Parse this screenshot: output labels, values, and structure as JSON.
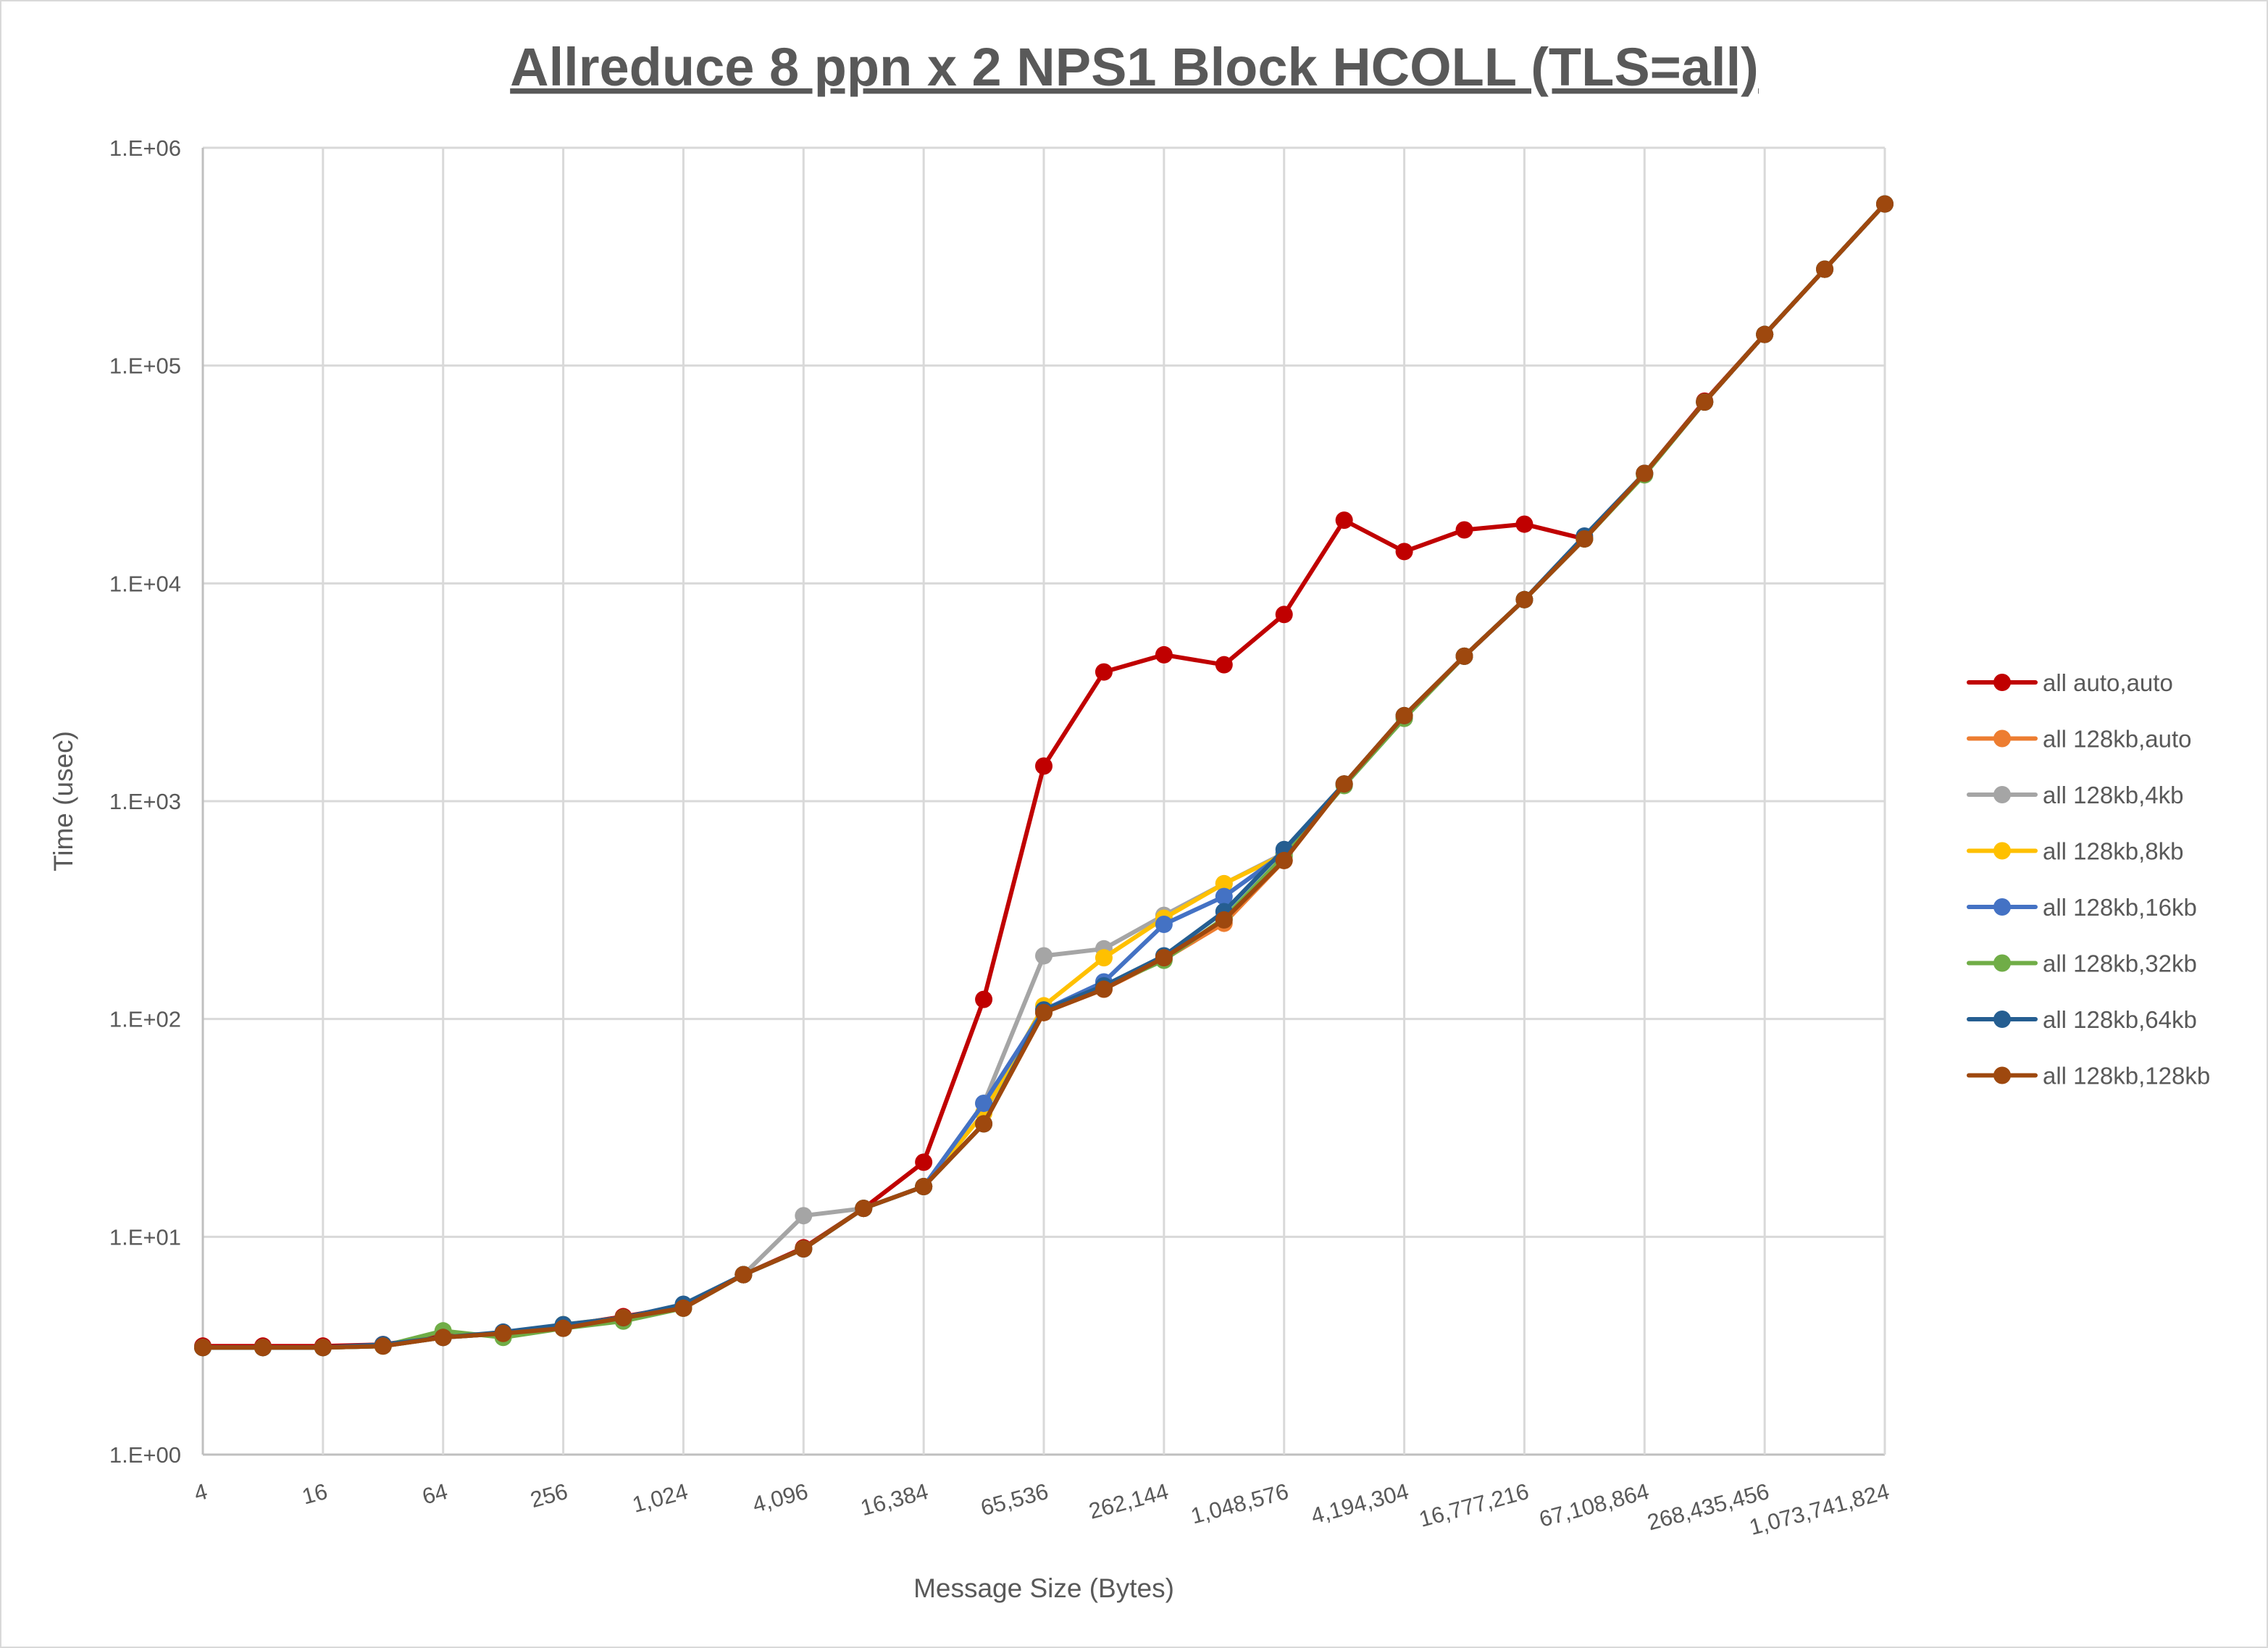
{
  "chart_data": {
    "type": "line",
    "title": "Allreduce 8 ppn x 2 NPS1 Block HCOLL (TLS=all)",
    "xlabel": "Message Size (Bytes)",
    "ylabel": "Time (usec)",
    "x_scale": "log2",
    "y_scale": "log10",
    "ylim": [
      1,
      1000000
    ],
    "grid": true,
    "legend_position": "right",
    "y_tick_labels": [
      "1.E+00",
      "1.E+01",
      "1.E+02",
      "1.E+03",
      "1.E+04",
      "1.E+05",
      "1.E+06"
    ],
    "x_tick_labels": [
      "4",
      "16",
      "64",
      "256",
      "1,024",
      "4,096",
      "16,384",
      "65,536",
      "262,144",
      "1,048,576",
      "4,194,304",
      "16,777,216",
      "67,108,864",
      "268,435,456",
      "1,073,741,824"
    ],
    "x": [
      4,
      8,
      16,
      32,
      64,
      128,
      256,
      512,
      1024,
      2048,
      4096,
      8192,
      16384,
      32768,
      65536,
      131072,
      262144,
      524288,
      1048576,
      2097152,
      4194304,
      8388608,
      16777216,
      33554432,
      67108864,
      134217728,
      268435456,
      536870912,
      1073741824
    ],
    "series": [
      {
        "name": "all auto,auto",
        "color": "#C00000",
        "values": [
          3.15,
          3.15,
          3.15,
          3.2,
          3.5,
          3.6,
          3.9,
          4.3,
          4.8,
          6.7,
          8.9,
          13.5,
          22,
          123,
          1450,
          3920,
          4700,
          4230,
          7200,
          19500,
          14000,
          17600,
          18700,
          16000,
          32000,
          68700,
          139000,
          277000,
          552000
        ]
      },
      {
        "name": "all 128kb,auto",
        "color": "#ED7D31",
        "values": [
          3.1,
          3.1,
          3.1,
          3.15,
          3.45,
          3.6,
          3.8,
          4.25,
          4.7,
          6.7,
          8.8,
          13.5,
          17,
          33,
          107,
          137,
          188,
          275,
          534,
          1200,
          2470,
          4630,
          8420,
          16000,
          32000,
          68000,
          139000,
          277000,
          552000
        ]
      },
      {
        "name": "all 128kb,4kb",
        "color": "#A5A5A5",
        "values": [
          3.1,
          3.1,
          3.1,
          3.15,
          3.45,
          3.6,
          3.8,
          4.25,
          4.7,
          6.7,
          12.5,
          13.5,
          17,
          41,
          195,
          210,
          299,
          418,
          577,
          1180,
          2400,
          4630,
          8420,
          16000,
          32000,
          68000,
          139000,
          277000,
          552000
        ]
      },
      {
        "name": "all 128kb,8kb",
        "color": "#FFC000",
        "values": [
          3.1,
          3.1,
          3.1,
          3.15,
          3.45,
          3.6,
          3.95,
          4.25,
          4.7,
          6.7,
          8.8,
          13.5,
          17,
          37,
          115,
          191,
          290,
          418,
          570,
          1200,
          2470,
          4630,
          8420,
          16000,
          32000,
          68000,
          139000,
          277000,
          552000
        ]
      },
      {
        "name": "all 128kb,16kb",
        "color": "#4472C4",
        "values": [
          3.1,
          3.1,
          3.1,
          3.15,
          3.45,
          3.6,
          3.8,
          4.25,
          4.7,
          6.7,
          8.8,
          13.5,
          17,
          41,
          110,
          148,
          272,
          365,
          577,
          1200,
          2470,
          4630,
          8420,
          16000,
          32000,
          68000,
          139000,
          277000,
          552000
        ]
      },
      {
        "name": "all 128kb,32kb",
        "color": "#70AD47",
        "values": [
          3.1,
          3.1,
          3.1,
          3.15,
          3.7,
          3.45,
          3.8,
          4.1,
          4.7,
          6.7,
          8.8,
          13.5,
          17,
          33,
          108,
          140,
          186,
          290,
          560,
          1180,
          2400,
          4630,
          8420,
          16000,
          31500,
          68000,
          139000,
          277000,
          552000
        ]
      },
      {
        "name": "all 128kb,64kb",
        "color": "#255E91",
        "values": [
          3.1,
          3.1,
          3.1,
          3.2,
          3.45,
          3.65,
          3.95,
          4.25,
          4.9,
          6.7,
          8.8,
          13.5,
          17,
          33,
          110,
          142,
          195,
          311,
          600,
          1200,
          2470,
          4630,
          8420,
          16500,
          32000,
          68000,
          139000,
          277000,
          552000
        ]
      },
      {
        "name": "all 128kb,128kb",
        "color": "#9E480E",
        "values": [
          3.1,
          3.1,
          3.1,
          3.15,
          3.45,
          3.6,
          3.8,
          4.25,
          4.7,
          6.7,
          8.8,
          13.5,
          17,
          33,
          107,
          137,
          191,
          285,
          534,
          1200,
          2470,
          4630,
          8420,
          16000,
          32000,
          68000,
          139000,
          277000,
          552000
        ]
      }
    ]
  }
}
